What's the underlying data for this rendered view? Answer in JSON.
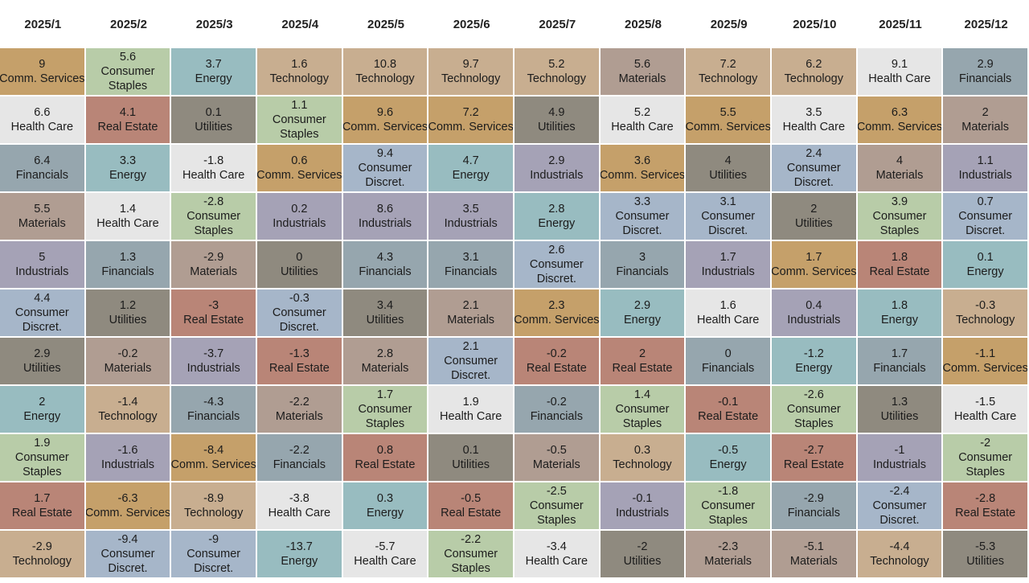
{
  "sector_colors": {
    "Comm. Services": "#c5a06a",
    "Consumer Staples": "#b8cca8",
    "Energy": "#98bcc0",
    "Technology": "#c8ae90",
    "Materials": "#b09d92",
    "Health Care": "#e6e6e6",
    "Financials": "#96a6ae",
    "Real Estate": "#b98577",
    "Utilities": "#8f8a7f",
    "Consumer Discret.": "#a6b6c9",
    "Industrials": "#a5a2b6"
  },
  "chart_data": {
    "type": "table",
    "columns": [
      "2025/1",
      "2025/2",
      "2025/3",
      "2025/4",
      "2025/5",
      "2025/6",
      "2025/7",
      "2025/8",
      "2025/9",
      "2025/10",
      "2025/11",
      "2025/12"
    ],
    "ranking": [
      [
        {
          "value": "9",
          "sector": "Comm. Services"
        },
        {
          "value": "6.6",
          "sector": "Health Care"
        },
        {
          "value": "6.4",
          "sector": "Financials"
        },
        {
          "value": "5.5",
          "sector": "Materials"
        },
        {
          "value": "5",
          "sector": "Industrials"
        },
        {
          "value": "4.4",
          "sector": "Consumer Discret."
        },
        {
          "value": "2.9",
          "sector": "Utilities"
        },
        {
          "value": "2",
          "sector": "Energy"
        },
        {
          "value": "1.9",
          "sector": "Consumer Staples"
        },
        {
          "value": "1.7",
          "sector": "Real Estate"
        },
        {
          "value": "-2.9",
          "sector": "Technology"
        }
      ],
      [
        {
          "value": "5.6",
          "sector": "Consumer Staples"
        },
        {
          "value": "4.1",
          "sector": "Real Estate"
        },
        {
          "value": "3.3",
          "sector": "Energy"
        },
        {
          "value": "1.4",
          "sector": "Health Care"
        },
        {
          "value": "1.3",
          "sector": "Financials"
        },
        {
          "value": "1.2",
          "sector": "Utilities"
        },
        {
          "value": "-0.2",
          "sector": "Materials"
        },
        {
          "value": "-1.4",
          "sector": "Technology"
        },
        {
          "value": "-1.6",
          "sector": "Industrials"
        },
        {
          "value": "-6.3",
          "sector": "Comm. Services"
        },
        {
          "value": "-9.4",
          "sector": "Consumer Discret."
        }
      ],
      [
        {
          "value": "3.7",
          "sector": "Energy"
        },
        {
          "value": "0.1",
          "sector": "Utilities"
        },
        {
          "value": "-1.8",
          "sector": "Health Care"
        },
        {
          "value": "-2.8",
          "sector": "Consumer Staples"
        },
        {
          "value": "-2.9",
          "sector": "Materials"
        },
        {
          "value": "-3",
          "sector": "Real Estate"
        },
        {
          "value": "-3.7",
          "sector": "Industrials"
        },
        {
          "value": "-4.3",
          "sector": "Financials"
        },
        {
          "value": "-8.4",
          "sector": "Comm. Services"
        },
        {
          "value": "-8.9",
          "sector": "Technology"
        },
        {
          "value": "-9",
          "sector": "Consumer Discret."
        }
      ],
      [
        {
          "value": "1.6",
          "sector": "Technology"
        },
        {
          "value": "1.1",
          "sector": "Consumer Staples"
        },
        {
          "value": "0.6",
          "sector": "Comm. Services"
        },
        {
          "value": "0.2",
          "sector": "Industrials"
        },
        {
          "value": "0",
          "sector": "Utilities"
        },
        {
          "value": "-0.3",
          "sector": "Consumer Discret."
        },
        {
          "value": "-1.3",
          "sector": "Real Estate"
        },
        {
          "value": "-2.2",
          "sector": "Materials"
        },
        {
          "value": "-2.2",
          "sector": "Financials"
        },
        {
          "value": "-3.8",
          "sector": "Health Care"
        },
        {
          "value": "-13.7",
          "sector": "Energy"
        }
      ],
      [
        {
          "value": "10.8",
          "sector": "Technology"
        },
        {
          "value": "9.6",
          "sector": "Comm. Services"
        },
        {
          "value": "9.4",
          "sector": "Consumer Discret."
        },
        {
          "value": "8.6",
          "sector": "Industrials"
        },
        {
          "value": "4.3",
          "sector": "Financials"
        },
        {
          "value": "3.4",
          "sector": "Utilities"
        },
        {
          "value": "2.8",
          "sector": "Materials"
        },
        {
          "value": "1.7",
          "sector": "Consumer Staples"
        },
        {
          "value": "0.8",
          "sector": "Real Estate"
        },
        {
          "value": "0.3",
          "sector": "Energy"
        },
        {
          "value": "-5.7",
          "sector": "Health Care"
        }
      ],
      [
        {
          "value": "9.7",
          "sector": "Technology"
        },
        {
          "value": "7.2",
          "sector": "Comm. Services"
        },
        {
          "value": "4.7",
          "sector": "Energy"
        },
        {
          "value": "3.5",
          "sector": "Industrials"
        },
        {
          "value": "3.1",
          "sector": "Financials"
        },
        {
          "value": "2.1",
          "sector": "Materials"
        },
        {
          "value": "2.1",
          "sector": "Consumer Discret."
        },
        {
          "value": "1.9",
          "sector": "Health Care"
        },
        {
          "value": "0.1",
          "sector": "Utilities"
        },
        {
          "value": "-0.5",
          "sector": "Real Estate"
        },
        {
          "value": "-2.2",
          "sector": "Consumer Staples"
        }
      ],
      [
        {
          "value": "5.2",
          "sector": "Technology"
        },
        {
          "value": "4.9",
          "sector": "Utilities"
        },
        {
          "value": "2.9",
          "sector": "Industrials"
        },
        {
          "value": "2.8",
          "sector": "Energy"
        },
        {
          "value": "2.6",
          "sector": "Consumer Discret."
        },
        {
          "value": "2.3",
          "sector": "Comm. Services"
        },
        {
          "value": "-0.2",
          "sector": "Real Estate"
        },
        {
          "value": "-0.2",
          "sector": "Financials"
        },
        {
          "value": "-0.5",
          "sector": "Materials"
        },
        {
          "value": "-2.5",
          "sector": "Consumer Staples"
        },
        {
          "value": "-3.4",
          "sector": "Health Care"
        }
      ],
      [
        {
          "value": "5.6",
          "sector": "Materials"
        },
        {
          "value": "5.2",
          "sector": "Health Care"
        },
        {
          "value": "3.6",
          "sector": "Comm. Services"
        },
        {
          "value": "3.3",
          "sector": "Consumer Discret."
        },
        {
          "value": "3",
          "sector": "Financials"
        },
        {
          "value": "2.9",
          "sector": "Energy"
        },
        {
          "value": "2",
          "sector": "Real Estate"
        },
        {
          "value": "1.4",
          "sector": "Consumer Staples"
        },
        {
          "value": "0.3",
          "sector": "Technology"
        },
        {
          "value": "-0.1",
          "sector": "Industrials"
        },
        {
          "value": "-2",
          "sector": "Utilities"
        }
      ],
      [
        {
          "value": "7.2",
          "sector": "Technology"
        },
        {
          "value": "5.5",
          "sector": "Comm. Services"
        },
        {
          "value": "4",
          "sector": "Utilities"
        },
        {
          "value": "3.1",
          "sector": "Consumer Discret."
        },
        {
          "value": "1.7",
          "sector": "Industrials"
        },
        {
          "value": "1.6",
          "sector": "Health Care"
        },
        {
          "value": "0",
          "sector": "Financials"
        },
        {
          "value": "-0.1",
          "sector": "Real Estate"
        },
        {
          "value": "-0.5",
          "sector": "Energy"
        },
        {
          "value": "-1.8",
          "sector": "Consumer Staples"
        },
        {
          "value": "-2.3",
          "sector": "Materials"
        }
      ],
      [
        {
          "value": "6.2",
          "sector": "Technology"
        },
        {
          "value": "3.5",
          "sector": "Health Care"
        },
        {
          "value": "2.4",
          "sector": "Consumer Discret."
        },
        {
          "value": "2",
          "sector": "Utilities"
        },
        {
          "value": "1.7",
          "sector": "Comm. Services"
        },
        {
          "value": "0.4",
          "sector": "Industrials"
        },
        {
          "value": "-1.2",
          "sector": "Energy"
        },
        {
          "value": "-2.6",
          "sector": "Consumer Staples"
        },
        {
          "value": "-2.7",
          "sector": "Real Estate"
        },
        {
          "value": "-2.9",
          "sector": "Financials"
        },
        {
          "value": "-5.1",
          "sector": "Materials"
        }
      ],
      [
        {
          "value": "9.1",
          "sector": "Health Care"
        },
        {
          "value": "6.3",
          "sector": "Comm. Services"
        },
        {
          "value": "4",
          "sector": "Materials"
        },
        {
          "value": "3.9",
          "sector": "Consumer Staples"
        },
        {
          "value": "1.8",
          "sector": "Real Estate"
        },
        {
          "value": "1.8",
          "sector": "Energy"
        },
        {
          "value": "1.7",
          "sector": "Financials"
        },
        {
          "value": "1.3",
          "sector": "Utilities"
        },
        {
          "value": "-1",
          "sector": "Industrials"
        },
        {
          "value": "-2.4",
          "sector": "Consumer Discret."
        },
        {
          "value": "-4.4",
          "sector": "Technology"
        }
      ],
      [
        {
          "value": "2.9",
          "sector": "Financials"
        },
        {
          "value": "2",
          "sector": "Materials"
        },
        {
          "value": "1.1",
          "sector": "Industrials"
        },
        {
          "value": "0.7",
          "sector": "Consumer Discret."
        },
        {
          "value": "0.1",
          "sector": "Energy"
        },
        {
          "value": "-0.3",
          "sector": "Technology"
        },
        {
          "value": "-1.1",
          "sector": "Comm. Services"
        },
        {
          "value": "-1.5",
          "sector": "Health Care"
        },
        {
          "value": "-2",
          "sector": "Consumer Staples"
        },
        {
          "value": "-2.8",
          "sector": "Real Estate"
        },
        {
          "value": "-5.3",
          "sector": "Utilities"
        }
      ]
    ]
  }
}
